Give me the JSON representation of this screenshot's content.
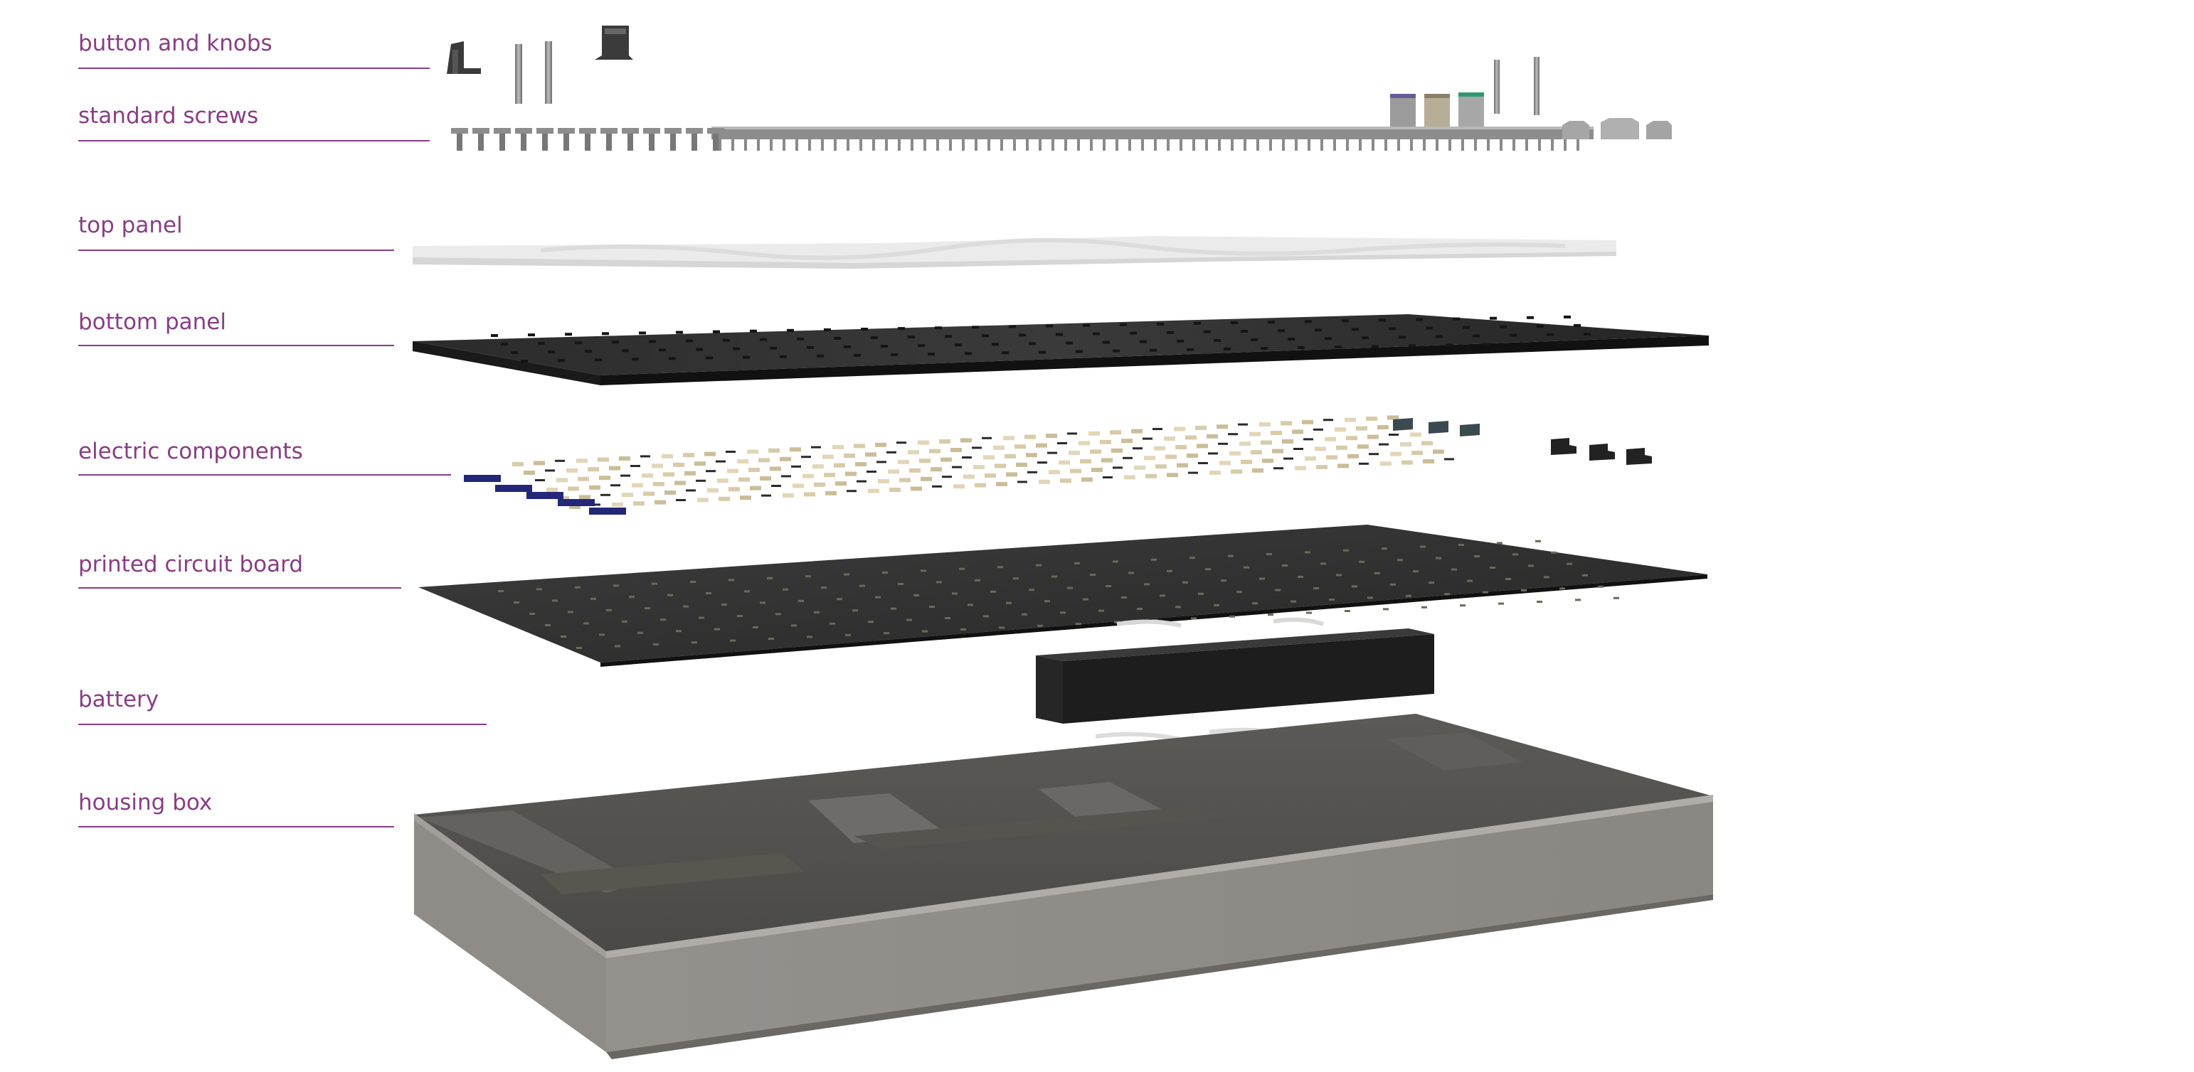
{
  "diagram": {
    "type": "exploded-view",
    "accent_color": "#8a3d86",
    "layers": [
      {
        "id": "button-knobs",
        "label": "button and knobs"
      },
      {
        "id": "standard-screws",
        "label": "standard screws"
      },
      {
        "id": "top-panel",
        "label": "top panel"
      },
      {
        "id": "bottom-panel",
        "label": "bottom panel"
      },
      {
        "id": "electric-components",
        "label": "electric components"
      },
      {
        "id": "pcb",
        "label": "printed circuit board"
      },
      {
        "id": "battery",
        "label": "battery"
      },
      {
        "id": "housing-box",
        "label": "housing box"
      }
    ]
  }
}
